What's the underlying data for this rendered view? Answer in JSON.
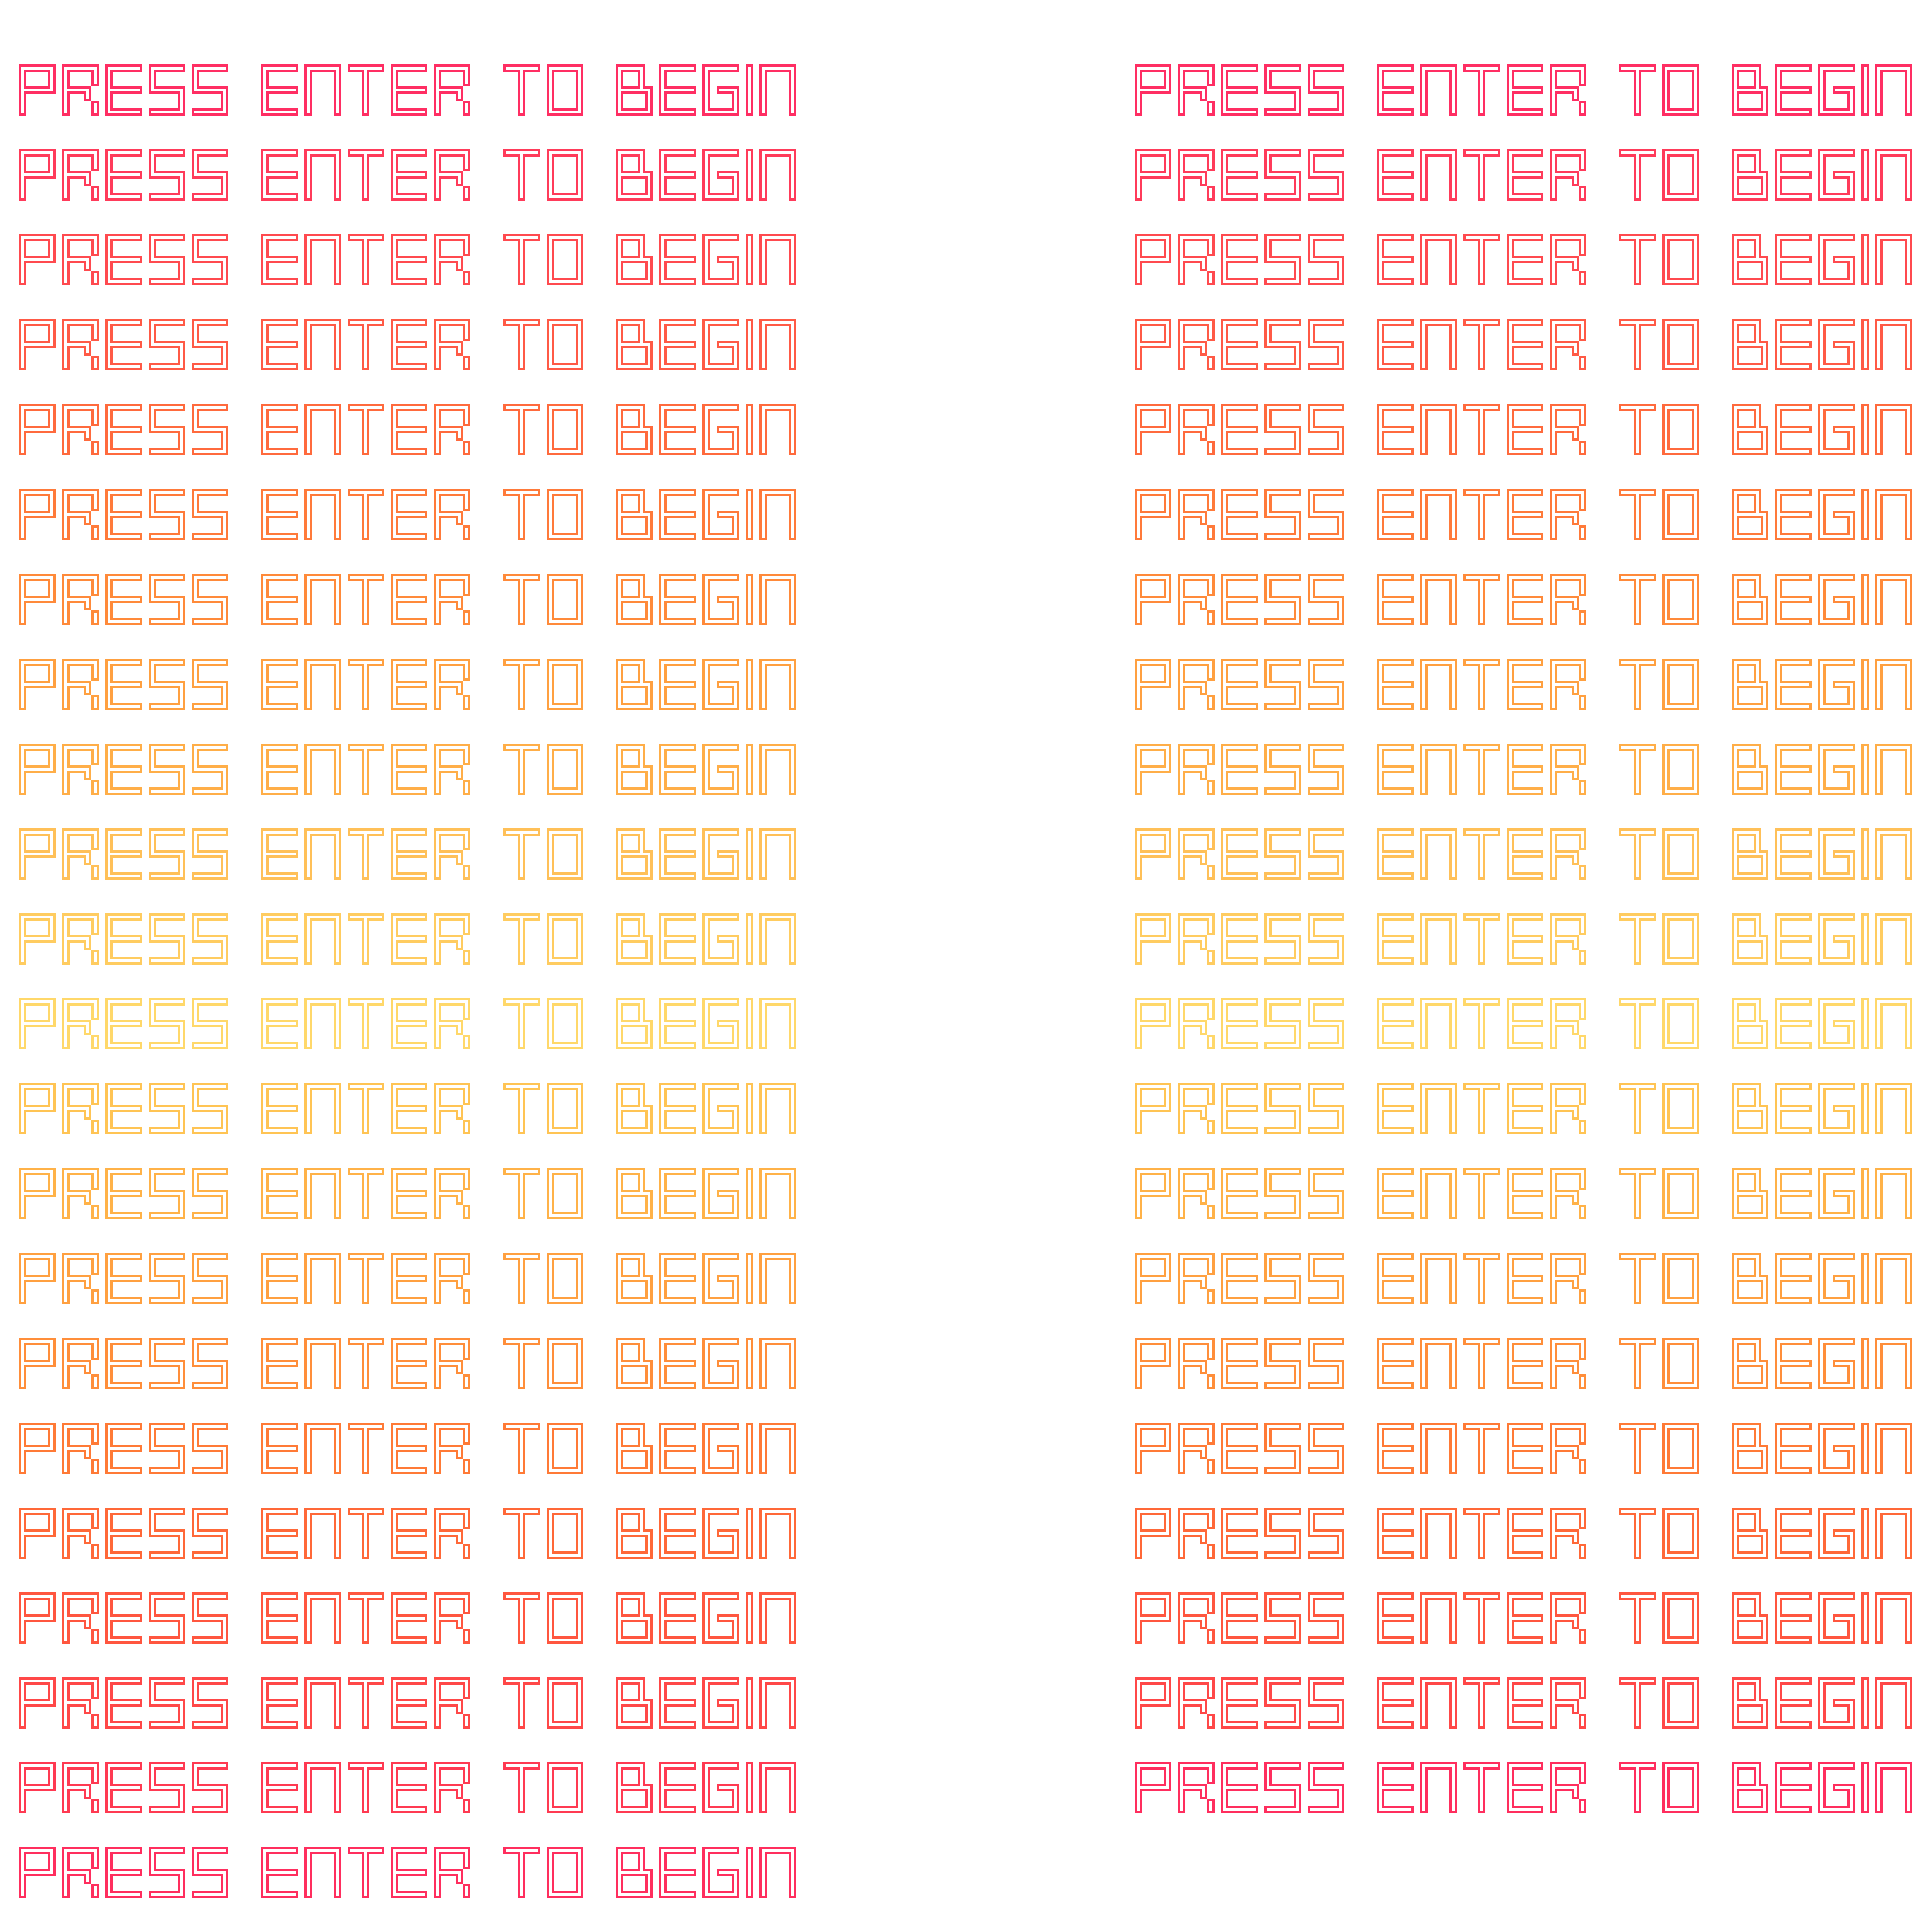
{
  "prompt_text": "PRESS ENTER TO BEGIN",
  "columns": [
    {
      "id": "left",
      "line_colors": [
        "#ff2e63",
        "#ff3b5a",
        "#ff4a4f",
        "#ff5a46",
        "#ff6a3d",
        "#ff7a3a",
        "#ff8a3a",
        "#ffa040",
        "#ffae48",
        "#ffc058",
        "#ffcc60",
        "#ffd86a",
        "#ffc454",
        "#ffb248",
        "#ffa040",
        "#ff8e3a",
        "#ff7a36",
        "#ff6838",
        "#ff563f",
        "#ff4848",
        "#ff3a52",
        "#ff2e5e"
      ]
    },
    {
      "id": "right",
      "line_colors": [
        "#ff2e63",
        "#ff3b5a",
        "#ff4a4f",
        "#ff5a46",
        "#ff6a3d",
        "#ff7a3a",
        "#ff8a3a",
        "#ffa040",
        "#ffae48",
        "#ffc058",
        "#ffcc60",
        "#ffd86a",
        "#ffc454",
        "#ffb248",
        "#ffa040",
        "#ff8e3a",
        "#ff7a36",
        "#ff6838",
        "#ff563f",
        "#ff4848",
        "#ff2e5e"
      ]
    }
  ]
}
